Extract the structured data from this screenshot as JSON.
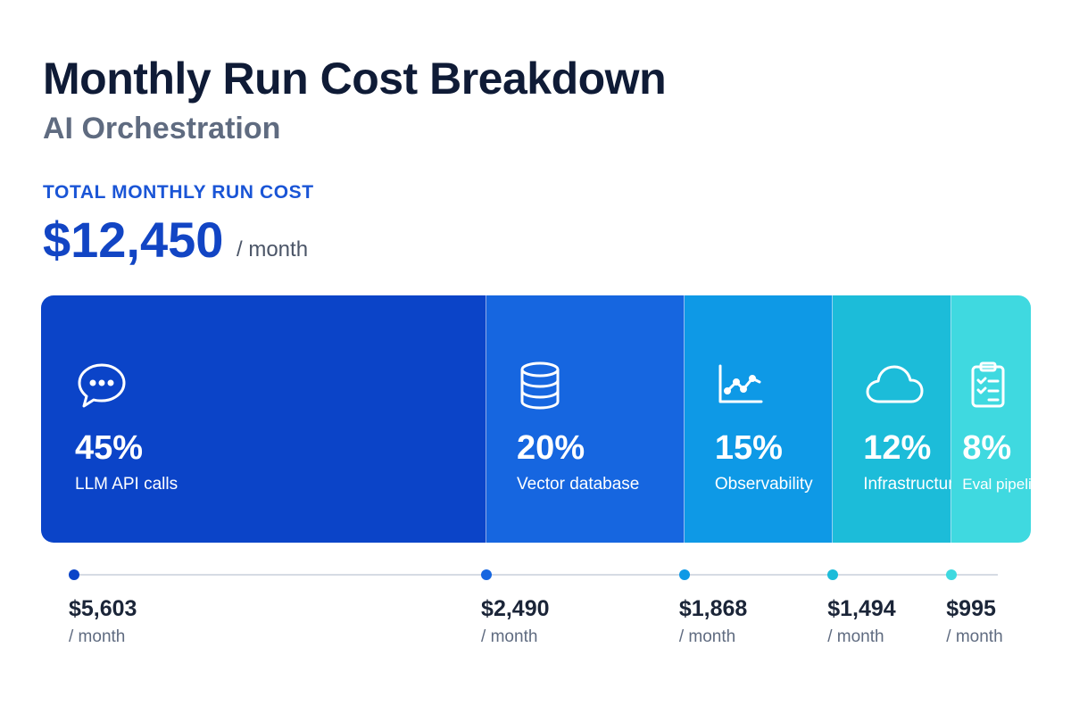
{
  "header": {
    "title": "Monthly Run Cost Breakdown",
    "subtitle": "AI Orchestration"
  },
  "total": {
    "label": "TOTAL MONTHLY RUN COST",
    "value": "$12,450",
    "unit": "/ month"
  },
  "chart_data": {
    "type": "bar",
    "orientation": "stacked-horizontal",
    "categories": [
      "LLM API calls",
      "Vector database",
      "Observability",
      "Infrastructure",
      "Eval pipeline"
    ],
    "percent_labels": [
      "45%",
      "20%",
      "15%",
      "12%",
      "8%"
    ],
    "percents": [
      45,
      20,
      15,
      12,
      8
    ],
    "values": [
      5603,
      2490,
      1868,
      1494,
      995
    ],
    "value_labels": [
      "$5,603",
      "$2,490",
      "$1,868",
      "$1,494",
      "$995"
    ],
    "unit_label": "/ month",
    "colors": [
      "#0b44c8",
      "#1666e0",
      "#0e99e6",
      "#1cbcd9",
      "#3fd9e0"
    ],
    "icons": [
      "chat-bubble-icon",
      "database-icon",
      "line-chart-icon",
      "cloud-icon",
      "clipboard-checklist-icon"
    ],
    "legend": "none",
    "grid": false
  }
}
